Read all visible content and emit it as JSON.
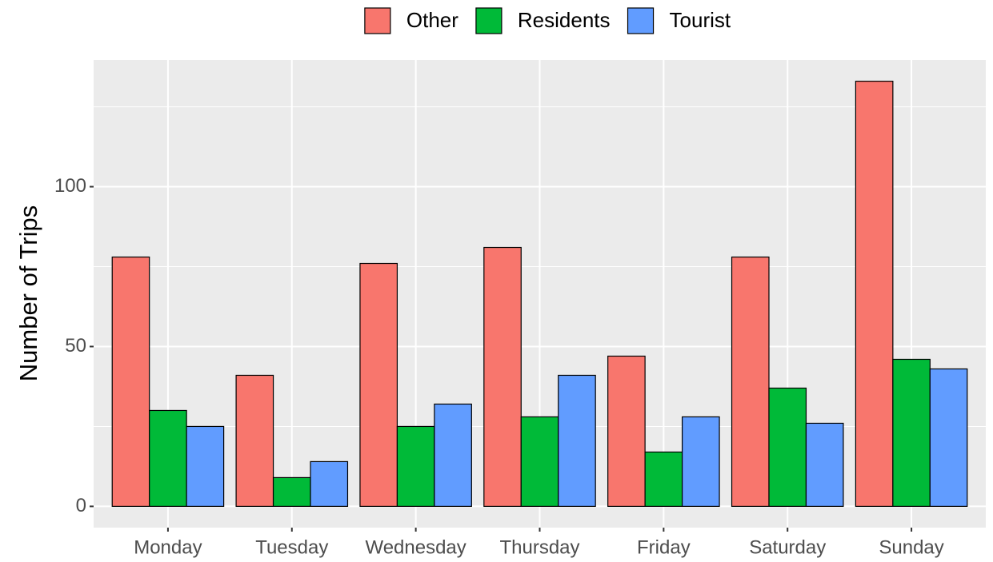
{
  "chart_data": {
    "type": "bar",
    "y_label": "Number of Trips",
    "categories": [
      "Monday",
      "Tuesday",
      "Wednesday",
      "Thursday",
      "Friday",
      "Saturday",
      "Sunday"
    ],
    "series": [
      {
        "name": "Other",
        "color": "#f8766d",
        "values": [
          78,
          41,
          76,
          81,
          47,
          78,
          133
        ]
      },
      {
        "name": "Residents",
        "color": "#00ba38",
        "values": [
          30,
          9,
          25,
          28,
          17,
          37,
          46
        ]
      },
      {
        "name": "Tourist",
        "color": "#619cff",
        "values": [
          25,
          14,
          32,
          41,
          28,
          26,
          43
        ]
      }
    ],
    "ylim": [
      -6.65,
      139.65
    ],
    "yticks": [
      0,
      50,
      100
    ],
    "yminor": [
      25,
      75,
      125
    ],
    "grid": true,
    "legend": "top"
  }
}
